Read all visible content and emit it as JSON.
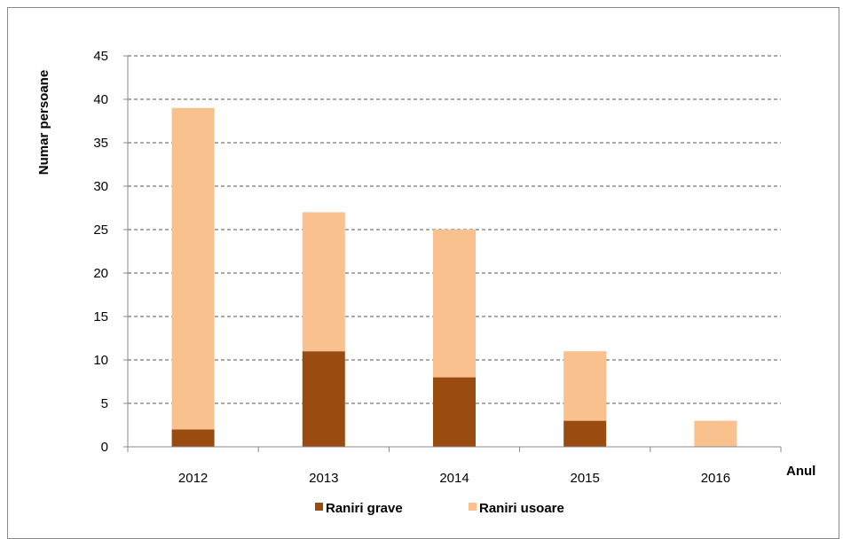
{
  "chart_data": {
    "type": "bar",
    "stacked": true,
    "categories": [
      "2012",
      "2013",
      "2014",
      "2015",
      "2016"
    ],
    "series": [
      {
        "name": "Raniri grave",
        "values": [
          2,
          11,
          8,
          3,
          0
        ],
        "color": "#9a4c10"
      },
      {
        "name": "Raniri usoare",
        "values": [
          37,
          16,
          17,
          8,
          3
        ],
        "color": "#f9c18e"
      }
    ],
    "title": "",
    "xlabel": "Anul",
    "ylabel": "Numar persoane",
    "ylim": [
      0,
      45
    ],
    "yticks": [
      0,
      5,
      10,
      15,
      20,
      25,
      30,
      35,
      40,
      45
    ],
    "grid": true,
    "legend_position": "bottom"
  }
}
